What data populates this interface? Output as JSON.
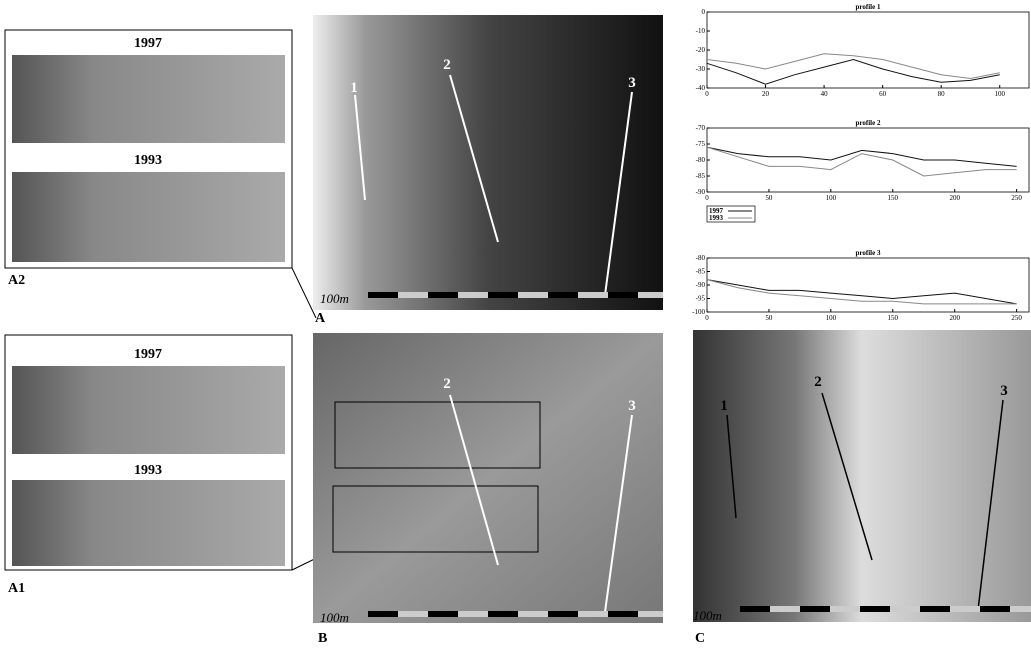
{
  "panels": {
    "a2": {
      "label": "A2",
      "top_year": "1997",
      "bottom_year": "1993"
    },
    "a1": {
      "label": "A1",
      "top_year": "1997",
      "bottom_year": "1993"
    },
    "a": {
      "label": "A",
      "scale": "100m",
      "profiles": [
        "1",
        "2",
        "3"
      ]
    },
    "b": {
      "label": "B",
      "scale": "100m",
      "profiles": [
        "2",
        "3"
      ]
    },
    "c": {
      "label": "C",
      "scale": "100m",
      "profiles": [
        "1",
        "2",
        "3"
      ]
    }
  },
  "chart_data": [
    {
      "type": "line",
      "title": "profile 1",
      "x": [
        0,
        10,
        20,
        30,
        40,
        50,
        60,
        70,
        80,
        90,
        100
      ],
      "xlim": [
        0,
        110
      ],
      "xticks": [
        0,
        20,
        40,
        60,
        80,
        100
      ],
      "ylim": [
        -40,
        0
      ],
      "yticks": [
        0,
        -10,
        -20,
        -30,
        -40
      ],
      "series": [
        {
          "name": "1997",
          "color": "#111111",
          "values": [
            -27,
            -32,
            -38,
            -33,
            -29,
            -25,
            -30,
            -34,
            -37,
            -36,
            -33
          ]
        },
        {
          "name": "1993",
          "color": "#888888",
          "values": [
            -25,
            -27,
            -30,
            -26,
            -22,
            -23,
            -25,
            -29,
            -33,
            -35,
            -32
          ]
        }
      ]
    },
    {
      "type": "line",
      "title": "profile 2",
      "x": [
        0,
        25,
        50,
        75,
        100,
        125,
        150,
        175,
        200,
        225,
        250
      ],
      "xlim": [
        0,
        260
      ],
      "xticks": [
        0,
        50,
        100,
        150,
        200,
        250
      ],
      "ylim": [
        -90,
        -70
      ],
      "yticks": [
        -70,
        -75,
        -80,
        -85,
        -90
      ],
      "series": [
        {
          "name": "1997",
          "color": "#111111",
          "values": [
            -76,
            -78,
            -79,
            -79,
            -80,
            -77,
            -78,
            -80,
            -80,
            -81,
            -82
          ]
        },
        {
          "name": "1993",
          "color": "#888888",
          "values": [
            -76,
            -79,
            -82,
            -82,
            -83,
            -78,
            -80,
            -85,
            -84,
            -83,
            -83
          ]
        }
      ]
    },
    {
      "type": "line",
      "title": "profile 3",
      "x": [
        0,
        25,
        50,
        75,
        100,
        125,
        150,
        175,
        200,
        225,
        250
      ],
      "xlim": [
        0,
        260
      ],
      "xticks": [
        0,
        50,
        100,
        150,
        200,
        250
      ],
      "ylim": [
        -100,
        -80
      ],
      "yticks": [
        -80,
        -85,
        -90,
        -95,
        -100
      ],
      "series": [
        {
          "name": "1997",
          "color": "#111111",
          "values": [
            -88,
            -90,
            -92,
            -92,
            -93,
            -94,
            -95,
            -94,
            -93,
            -95,
            -97
          ]
        },
        {
          "name": "1993",
          "color": "#888888",
          "values": [
            -88,
            -91,
            -93,
            -94,
            -95,
            -96,
            -96,
            -97,
            -97,
            -97,
            -97
          ]
        }
      ]
    }
  ]
}
